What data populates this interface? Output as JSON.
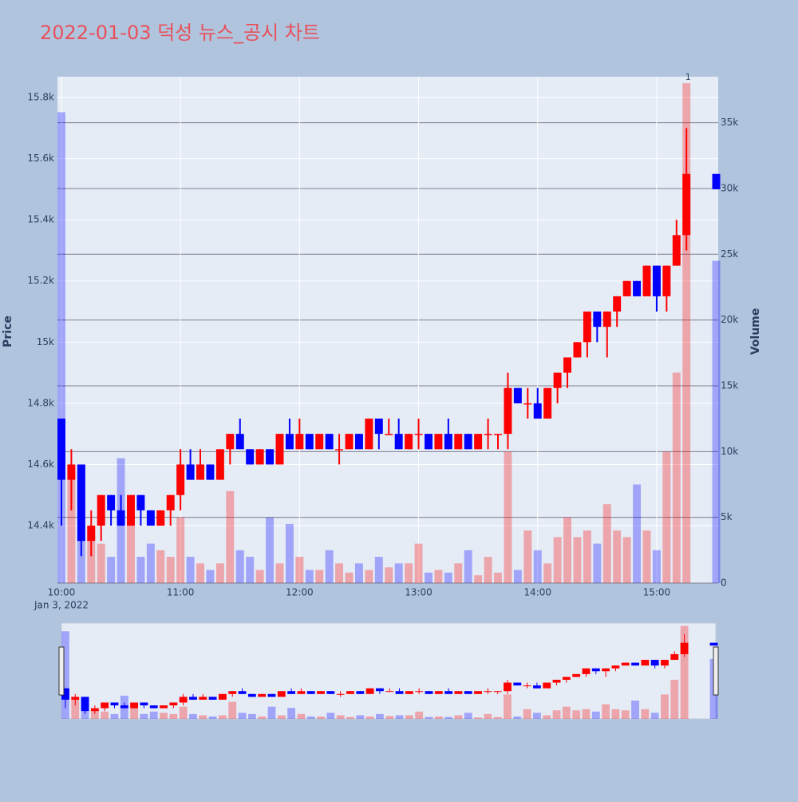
{
  "chart_data": {
    "type": "candlestick",
    "title": "2022-01-03 덕성 뉴스_공시 차트",
    "y_label": "Price",
    "y2_label": "Volume",
    "x_date_label": "Jan 3, 2022",
    "x": [
      "2022-01-03 10:00",
      "2022-01-03 10:05",
      "2022-01-03 10:10",
      "2022-01-03 10:15",
      "2022-01-03 10:20",
      "2022-01-03 10:25",
      "2022-01-03 10:30",
      "2022-01-03 10:35",
      "2022-01-03 10:40",
      "2022-01-03 10:45",
      "2022-01-03 10:50",
      "2022-01-03 10:55",
      "2022-01-03 11:00",
      "2022-01-03 11:05",
      "2022-01-03 11:10",
      "2022-01-03 11:15",
      "2022-01-03 11:20",
      "2022-01-03 11:25",
      "2022-01-03 11:30",
      "2022-01-03 11:35",
      "2022-01-03 11:40",
      "2022-01-03 11:45",
      "2022-01-03 11:50",
      "2022-01-03 11:55",
      "2022-01-03 12:00",
      "2022-01-03 12:05",
      "2022-01-03 12:10",
      "2022-01-03 12:15",
      "2022-01-03 12:20",
      "2022-01-03 12:25",
      "2022-01-03 12:30",
      "2022-01-03 12:35",
      "2022-01-03 12:40",
      "2022-01-03 12:45",
      "2022-01-03 12:50",
      "2022-01-03 12:55",
      "2022-01-03 13:00",
      "2022-01-03 13:05",
      "2022-01-03 13:10",
      "2022-01-03 13:15",
      "2022-01-03 13:20",
      "2022-01-03 13:25",
      "2022-01-03 13:30",
      "2022-01-03 13:35",
      "2022-01-03 13:40",
      "2022-01-03 13:45",
      "2022-01-03 13:50",
      "2022-01-03 13:55",
      "2022-01-03 14:00",
      "2022-01-03 14:05",
      "2022-01-03 14:10",
      "2022-01-03 14:15",
      "2022-01-03 14:20",
      "2022-01-03 14:25",
      "2022-01-03 14:30",
      "2022-01-03 14:35",
      "2022-01-03 14:40",
      "2022-01-03 14:45",
      "2022-01-03 14:50",
      "2022-01-03 14:55",
      "2022-01-03 15:00",
      "2022-01-03 15:05",
      "2022-01-03 15:10",
      "2022-01-03 15:15",
      "2022-01-03 15:30"
    ],
    "open": [
      14750,
      14550,
      14600,
      14350,
      14400,
      14500,
      14450,
      14400,
      14500,
      14450,
      14400,
      14450,
      14500,
      14600,
      14550,
      14600,
      14550,
      14650,
      14700,
      14650,
      14600,
      14650,
      14600,
      14700,
      14650,
      14700,
      14650,
      14700,
      14650,
      14650,
      14700,
      14650,
      14750,
      14700,
      14700,
      14650,
      14700,
      14700,
      14650,
      14700,
      14650,
      14700,
      14650,
      14700,
      14700,
      14700,
      14850,
      14800,
      14800,
      14750,
      14850,
      14900,
      14950,
      15000,
      15100,
      15050,
      15100,
      15150,
      15200,
      15150,
      15250,
      15150,
      15250,
      15350,
      15550
    ],
    "high": [
      14750,
      14650,
      14600,
      14450,
      14500,
      14500,
      14500,
      14500,
      14500,
      14450,
      14450,
      14500,
      14650,
      14650,
      14650,
      14600,
      14650,
      14700,
      14750,
      14650,
      14650,
      14650,
      14700,
      14750,
      14750,
      14700,
      14700,
      14700,
      14700,
      14700,
      14700,
      14750,
      14750,
      14750,
      14750,
      14700,
      14750,
      14700,
      14700,
      14750,
      14700,
      14700,
      14700,
      14750,
      14700,
      14900,
      14850,
      14850,
      14850,
      14850,
      14900,
      14950,
      15000,
      15100,
      15100,
      15100,
      15150,
      15200,
      15200,
      15250,
      15250,
      15250,
      15400,
      15700,
      15550
    ],
    "low": [
      14400,
      14450,
      14300,
      14300,
      14350,
      14400,
      14400,
      14400,
      14400,
      14400,
      14400,
      14400,
      14450,
      14550,
      14550,
      14550,
      14550,
      14600,
      14650,
      14600,
      14600,
      14600,
      14600,
      14650,
      14650,
      14650,
      14650,
      14650,
      14600,
      14650,
      14650,
      14650,
      14650,
      14700,
      14650,
      14650,
      14650,
      14650,
      14650,
      14650,
      14650,
      14650,
      14650,
      14650,
      14650,
      14650,
      14800,
      14750,
      14750,
      14750,
      14800,
      14850,
      14950,
      14950,
      15000,
      14950,
      15050,
      15150,
      15150,
      15150,
      15100,
      15100,
      15250,
      15300,
      15500
    ],
    "close": [
      14550,
      14600,
      14350,
      14400,
      14500,
      14450,
      14400,
      14500,
      14450,
      14400,
      14450,
      14500,
      14600,
      14550,
      14600,
      14550,
      14650,
      14700,
      14650,
      14600,
      14650,
      14600,
      14700,
      14650,
      14700,
      14650,
      14700,
      14650,
      14650,
      14700,
      14650,
      14750,
      14700,
      14700,
      14650,
      14700,
      14700,
      14650,
      14700,
      14650,
      14700,
      14650,
      14700,
      14700,
      14700,
      14850,
      14800,
      14800,
      14750,
      14850,
      14900,
      14950,
      15000,
      15100,
      15050,
      15100,
      15150,
      15200,
      15150,
      15250,
      15150,
      15250,
      15350,
      15550,
      15500
    ],
    "volume": [
      35800,
      8000,
      9000,
      4000,
      3000,
      2000,
      9500,
      5000,
      2000,
      3000,
      2500,
      2000,
      5000,
      2000,
      1500,
      1000,
      1500,
      7000,
      2500,
      2000,
      1000,
      5000,
      1500,
      4500,
      2000,
      1000,
      1000,
      2500,
      1500,
      800,
      1500,
      1000,
      2000,
      1200,
      1500,
      1500,
      3000,
      800,
      1000,
      800,
      1500,
      2500,
      600,
      2000,
      800,
      10000,
      1000,
      4000,
      2500,
      1500,
      3500,
      5000,
      3500,
      4000,
      3000,
      6000,
      4000,
      3500,
      7500,
      4000,
      2500,
      10000,
      16000,
      38000,
      24500
    ],
    "increasing_color": "#ff0000",
    "decreasing_color": "#0000ff",
    "increasing_volume_color": "rgba(255,0,0,0.3)",
    "decreasing_volume_color": "rgba(0,0,255,0.3)",
    "xlim": [
      "2022-01-03 09:58",
      "2022-01-03 15:31"
    ],
    "xticks": [
      {
        "value": "2022-01-03 10:00",
        "label": "10:00"
      },
      {
        "value": "2022-01-03 11:00",
        "label": "11:00"
      },
      {
        "value": "2022-01-03 12:00",
        "label": "12:00"
      },
      {
        "value": "2022-01-03 13:00",
        "label": "13:00"
      },
      {
        "value": "2022-01-03 14:00",
        "label": "14:00"
      },
      {
        "value": "2022-01-03 15:00",
        "label": "15:00"
      }
    ],
    "ylim": [
      14212,
      15868
    ],
    "yticks": [
      {
        "value": 14400,
        "label": "14.4k"
      },
      {
        "value": 14600,
        "label": "14.6k"
      },
      {
        "value": 14800,
        "label": "14.8k"
      },
      {
        "value": 15000,
        "label": "15k"
      },
      {
        "value": 15200,
        "label": "15.2k"
      },
      {
        "value": 15400,
        "label": "15.4k"
      },
      {
        "value": 15600,
        "label": "15.6k"
      },
      {
        "value": 15800,
        "label": "15.8k"
      }
    ],
    "y2lim": [
      0,
      38500
    ],
    "y2ticks": [
      0,
      {
        "value": 5000,
        "label": "5k"
      },
      {
        "value": 10000,
        "label": "10k"
      },
      {
        "value": 15000,
        "label": "15k"
      },
      {
        "value": 20000,
        "label": "20k"
      },
      {
        "value": 25000,
        "label": "25k"
      },
      {
        "value": 30000,
        "label": "30k"
      },
      {
        "value": 35000,
        "label": "35k"
      }
    ],
    "annotations": [
      {
        "text": "1",
        "x": "2022-01-03 15:15"
      }
    ],
    "grid": true
  }
}
